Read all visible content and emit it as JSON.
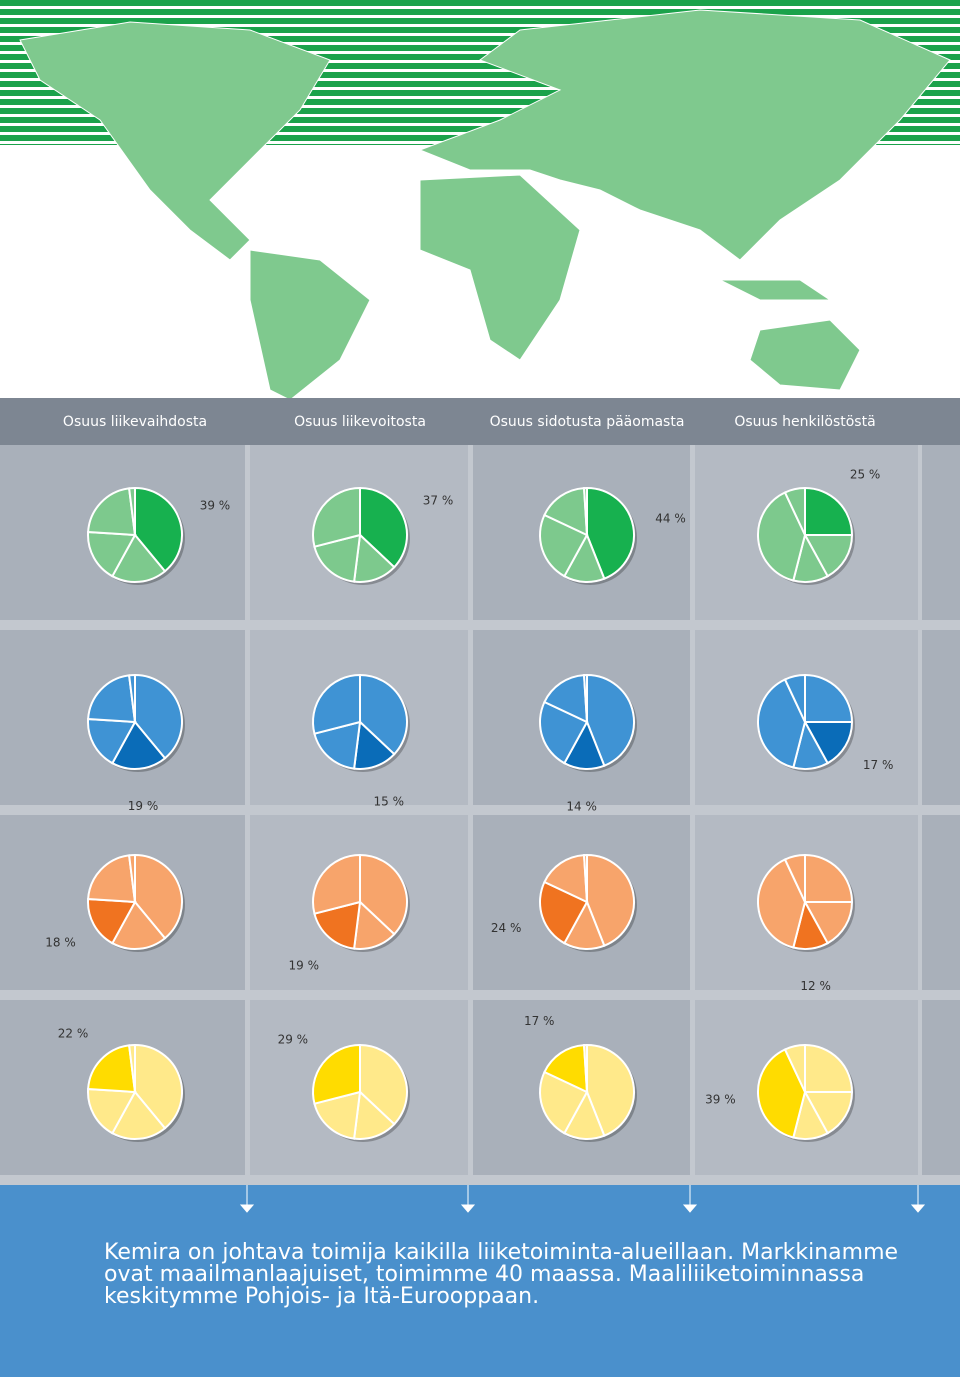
{
  "chart_data": {
    "type": "pie",
    "categories": [
      "Osuus liikevaihdosta",
      "Osuus liikevoitosta",
      "Osuus sidotusta pääomasta",
      "Osuus henkilöstöstä"
    ],
    "series": [
      {
        "color": "#17b14f",
        "light_color": "#7dc98d",
        "values": [
          39,
          37,
          44,
          25
        ],
        "value_labels": [
          "39 %",
          "37 %",
          "44 %",
          "25 %"
        ]
      },
      {
        "color": "#0a6cb8",
        "light_color": "#3f93d4",
        "values": [
          19,
          15,
          14,
          17
        ],
        "value_labels": [
          "19 %",
          "15 %",
          "14 %",
          "17 %"
        ]
      },
      {
        "color": "#f07320",
        "light_color": "#f7a46b",
        "values": [
          18,
          19,
          24,
          12
        ],
        "value_labels": [
          "18 %",
          "19 %",
          "24 %",
          "12 %"
        ]
      },
      {
        "color": "#ffdc00",
        "light_color": "#ffe98a",
        "values": [
          22,
          29,
          17,
          39
        ],
        "value_labels": [
          "22 %",
          "29 %",
          "17 %",
          "39 %"
        ]
      }
    ],
    "other_values": [
      2,
      0,
      1,
      7
    ],
    "caption": "Kemira on johtava toimija kaikilla liiketoiminta-alueillaan. Markkinamme ovat maailmanlaajuiset, toimimme 40 maassa. Maaliliiketoiminnassa keskitymme Pohjois- ja Itä-Eurooppaan."
  }
}
